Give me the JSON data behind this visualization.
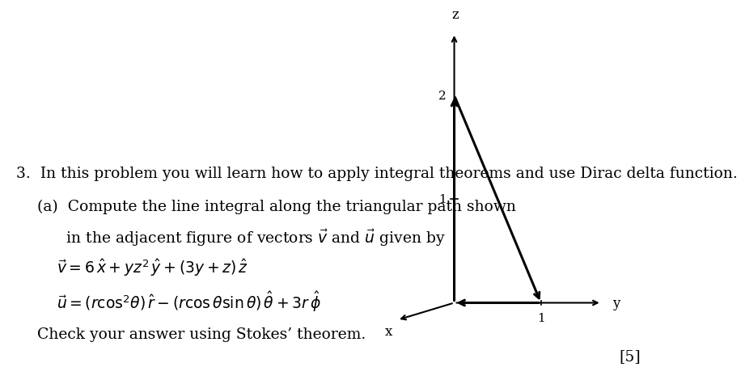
{
  "title_text": "3.  In this problem you will learn how to apply integral theorems and use Dirac delta function.",
  "part_a_line1": "(a)  Compute the line integral along the triangular path shown",
  "part_a_line2": "      in the adjacent figure of vectors $\\vec{v}$ and $\\vec{u}$ given by",
  "eq1": "$\\vec{v} = 6\\,\\hat{x} + yz^2\\,\\hat{y} + (3y + z)\\,\\hat{z}$",
  "eq2": "$\\vec{u} = (r\\cos^2\\!\\theta)\\,\\hat{r} - (r\\cos\\theta\\sin\\theta)\\,\\hat{\\theta} + 3r\\,\\hat{\\phi}$",
  "check_text": "Check your answer using Stokes’ theorem.",
  "marks_text": "[5]",
  "background_color": "#ffffff",
  "text_color": "#000000",
  "fig_width": 10.24,
  "fig_height": 3.47,
  "ox": 0.695,
  "oy": 0.32,
  "sy": 0.135,
  "sz": 0.48,
  "sx": 0.09,
  "ux": [
    -0.58,
    -0.52
  ],
  "uy": [
    1.0,
    0.0
  ],
  "uz": [
    0.0,
    1.0
  ]
}
